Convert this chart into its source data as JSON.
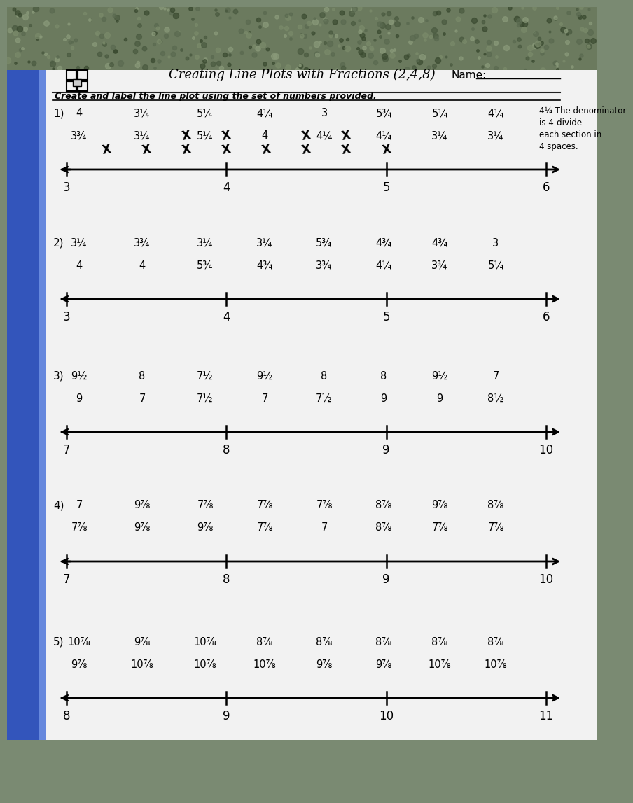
{
  "title": "Creating Line Plots with Fractions (2,4,8)",
  "name_label": "Name:",
  "subtitle": "Create and label the line plot using the set of numbers provided.",
  "bg_color": "#7a8a72",
  "paper_color": "#f0f0f0",
  "text_color": "#111111",
  "blue_color": "#2244aa",
  "problems": [
    {
      "number": "1)",
      "row1": [
        "4",
        "3¼",
        "5¼",
        "4¼",
        "3",
        "5¾",
        "5¼",
        "4¼"
      ],
      "row2": [
        "3¾",
        "3¼",
        "5¼",
        "4",
        "4¼",
        "4¼",
        "3¼",
        "3¼"
      ],
      "note": "4¼ The denominator\nis 4-divide\neach section in\n4 spaces.",
      "axis_ticks": [
        3,
        4,
        5,
        6
      ],
      "x_marks": [
        3.25,
        3.5,
        3.75,
        4.0,
        4.25,
        4.5,
        4.75,
        5.0
      ],
      "x_counts": [
        1,
        1,
        2,
        2,
        1,
        2,
        2,
        1
      ]
    },
    {
      "number": "2)",
      "row1": [
        "3¼",
        "3¾",
        "3¼",
        "3¼",
        "5¾",
        "4¾",
        "4¾",
        "3"
      ],
      "row2": [
        "4",
        "4",
        "5¾",
        "4¾",
        "3¾",
        "4¼",
        "3¾",
        "5¼"
      ],
      "note": "",
      "axis_ticks": [
        3,
        4,
        5,
        6
      ],
      "x_marks": [],
      "x_counts": []
    },
    {
      "number": "3)",
      "row1": [
        "9½",
        "8",
        "7½",
        "9½",
        "8",
        "8",
        "9½",
        "7"
      ],
      "row2": [
        "9",
        "7",
        "7½",
        "7",
        "7½",
        "9",
        "9",
        "8½"
      ],
      "note": "",
      "axis_ticks": [
        7,
        8,
        9,
        10
      ],
      "x_marks": [],
      "x_counts": []
    },
    {
      "number": "4)",
      "row1": [
        "7",
        "9⅞",
        "7⅞",
        "7⅞",
        "7⅞",
        "8⅞",
        "9⅞",
        "8⅞"
      ],
      "row2": [
        "7⅞",
        "9⅞",
        "9⅞",
        "7⅞",
        "7",
        "8⅞",
        "7⅞",
        "7⅞"
      ],
      "note": "",
      "axis_ticks": [
        7,
        8,
        9,
        10
      ],
      "x_marks": [],
      "x_counts": []
    },
    {
      "number": "5)",
      "row1": [
        "10⅞",
        "9⅞",
        "10⅞",
        "8⅞",
        "8⅞",
        "8⅞",
        "8⅞",
        "8⅞"
      ],
      "row2": [
        "9⅞",
        "10⅞",
        "10⅞",
        "10⅞",
        "9⅞",
        "9⅞",
        "10⅞",
        "10⅞"
      ],
      "note": "",
      "axis_ticks": [
        8,
        9,
        10,
        11
      ],
      "x_marks": [],
      "x_counts": []
    }
  ]
}
